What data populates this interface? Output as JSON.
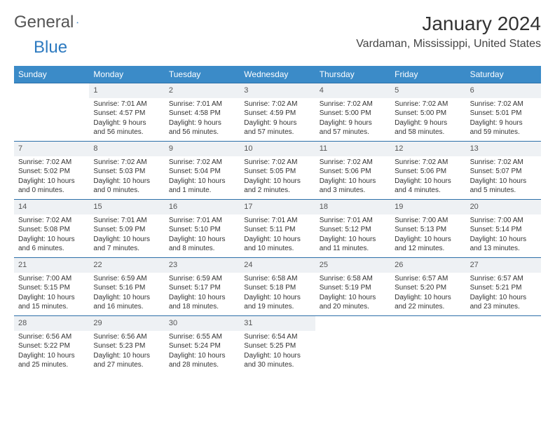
{
  "brand": {
    "part1": "General",
    "part2": "Blue"
  },
  "title": "January 2024",
  "location": "Vardaman, Mississippi, United States",
  "colors": {
    "header_bg": "#3b8bc8",
    "header_text": "#ffffff",
    "rule": "#2d6fa8",
    "daynum_bg": "#eef1f4",
    "brand_blue": "#2d7ac0"
  },
  "dayNames": [
    "Sunday",
    "Monday",
    "Tuesday",
    "Wednesday",
    "Thursday",
    "Friday",
    "Saturday"
  ],
  "weeks": [
    [
      {
        "empty": true
      },
      {
        "day": "1",
        "sunrise": "Sunrise: 7:01 AM",
        "sunset": "Sunset: 4:57 PM",
        "daylight1": "Daylight: 9 hours",
        "daylight2": "and 56 minutes."
      },
      {
        "day": "2",
        "sunrise": "Sunrise: 7:01 AM",
        "sunset": "Sunset: 4:58 PM",
        "daylight1": "Daylight: 9 hours",
        "daylight2": "and 56 minutes."
      },
      {
        "day": "3",
        "sunrise": "Sunrise: 7:02 AM",
        "sunset": "Sunset: 4:59 PM",
        "daylight1": "Daylight: 9 hours",
        "daylight2": "and 57 minutes."
      },
      {
        "day": "4",
        "sunrise": "Sunrise: 7:02 AM",
        "sunset": "Sunset: 5:00 PM",
        "daylight1": "Daylight: 9 hours",
        "daylight2": "and 57 minutes."
      },
      {
        "day": "5",
        "sunrise": "Sunrise: 7:02 AM",
        "sunset": "Sunset: 5:00 PM",
        "daylight1": "Daylight: 9 hours",
        "daylight2": "and 58 minutes."
      },
      {
        "day": "6",
        "sunrise": "Sunrise: 7:02 AM",
        "sunset": "Sunset: 5:01 PM",
        "daylight1": "Daylight: 9 hours",
        "daylight2": "and 59 minutes."
      }
    ],
    [
      {
        "day": "7",
        "sunrise": "Sunrise: 7:02 AM",
        "sunset": "Sunset: 5:02 PM",
        "daylight1": "Daylight: 10 hours",
        "daylight2": "and 0 minutes."
      },
      {
        "day": "8",
        "sunrise": "Sunrise: 7:02 AM",
        "sunset": "Sunset: 5:03 PM",
        "daylight1": "Daylight: 10 hours",
        "daylight2": "and 0 minutes."
      },
      {
        "day": "9",
        "sunrise": "Sunrise: 7:02 AM",
        "sunset": "Sunset: 5:04 PM",
        "daylight1": "Daylight: 10 hours",
        "daylight2": "and 1 minute."
      },
      {
        "day": "10",
        "sunrise": "Sunrise: 7:02 AM",
        "sunset": "Sunset: 5:05 PM",
        "daylight1": "Daylight: 10 hours",
        "daylight2": "and 2 minutes."
      },
      {
        "day": "11",
        "sunrise": "Sunrise: 7:02 AM",
        "sunset": "Sunset: 5:06 PM",
        "daylight1": "Daylight: 10 hours",
        "daylight2": "and 3 minutes."
      },
      {
        "day": "12",
        "sunrise": "Sunrise: 7:02 AM",
        "sunset": "Sunset: 5:06 PM",
        "daylight1": "Daylight: 10 hours",
        "daylight2": "and 4 minutes."
      },
      {
        "day": "13",
        "sunrise": "Sunrise: 7:02 AM",
        "sunset": "Sunset: 5:07 PM",
        "daylight1": "Daylight: 10 hours",
        "daylight2": "and 5 minutes."
      }
    ],
    [
      {
        "day": "14",
        "sunrise": "Sunrise: 7:02 AM",
        "sunset": "Sunset: 5:08 PM",
        "daylight1": "Daylight: 10 hours",
        "daylight2": "and 6 minutes."
      },
      {
        "day": "15",
        "sunrise": "Sunrise: 7:01 AM",
        "sunset": "Sunset: 5:09 PM",
        "daylight1": "Daylight: 10 hours",
        "daylight2": "and 7 minutes."
      },
      {
        "day": "16",
        "sunrise": "Sunrise: 7:01 AM",
        "sunset": "Sunset: 5:10 PM",
        "daylight1": "Daylight: 10 hours",
        "daylight2": "and 8 minutes."
      },
      {
        "day": "17",
        "sunrise": "Sunrise: 7:01 AM",
        "sunset": "Sunset: 5:11 PM",
        "daylight1": "Daylight: 10 hours",
        "daylight2": "and 10 minutes."
      },
      {
        "day": "18",
        "sunrise": "Sunrise: 7:01 AM",
        "sunset": "Sunset: 5:12 PM",
        "daylight1": "Daylight: 10 hours",
        "daylight2": "and 11 minutes."
      },
      {
        "day": "19",
        "sunrise": "Sunrise: 7:00 AM",
        "sunset": "Sunset: 5:13 PM",
        "daylight1": "Daylight: 10 hours",
        "daylight2": "and 12 minutes."
      },
      {
        "day": "20",
        "sunrise": "Sunrise: 7:00 AM",
        "sunset": "Sunset: 5:14 PM",
        "daylight1": "Daylight: 10 hours",
        "daylight2": "and 13 minutes."
      }
    ],
    [
      {
        "day": "21",
        "sunrise": "Sunrise: 7:00 AM",
        "sunset": "Sunset: 5:15 PM",
        "daylight1": "Daylight: 10 hours",
        "daylight2": "and 15 minutes."
      },
      {
        "day": "22",
        "sunrise": "Sunrise: 6:59 AM",
        "sunset": "Sunset: 5:16 PM",
        "daylight1": "Daylight: 10 hours",
        "daylight2": "and 16 minutes."
      },
      {
        "day": "23",
        "sunrise": "Sunrise: 6:59 AM",
        "sunset": "Sunset: 5:17 PM",
        "daylight1": "Daylight: 10 hours",
        "daylight2": "and 18 minutes."
      },
      {
        "day": "24",
        "sunrise": "Sunrise: 6:58 AM",
        "sunset": "Sunset: 5:18 PM",
        "daylight1": "Daylight: 10 hours",
        "daylight2": "and 19 minutes."
      },
      {
        "day": "25",
        "sunrise": "Sunrise: 6:58 AM",
        "sunset": "Sunset: 5:19 PM",
        "daylight1": "Daylight: 10 hours",
        "daylight2": "and 20 minutes."
      },
      {
        "day": "26",
        "sunrise": "Sunrise: 6:57 AM",
        "sunset": "Sunset: 5:20 PM",
        "daylight1": "Daylight: 10 hours",
        "daylight2": "and 22 minutes."
      },
      {
        "day": "27",
        "sunrise": "Sunrise: 6:57 AM",
        "sunset": "Sunset: 5:21 PM",
        "daylight1": "Daylight: 10 hours",
        "daylight2": "and 23 minutes."
      }
    ],
    [
      {
        "day": "28",
        "sunrise": "Sunrise: 6:56 AM",
        "sunset": "Sunset: 5:22 PM",
        "daylight1": "Daylight: 10 hours",
        "daylight2": "and 25 minutes."
      },
      {
        "day": "29",
        "sunrise": "Sunrise: 6:56 AM",
        "sunset": "Sunset: 5:23 PM",
        "daylight1": "Daylight: 10 hours",
        "daylight2": "and 27 minutes."
      },
      {
        "day": "30",
        "sunrise": "Sunrise: 6:55 AM",
        "sunset": "Sunset: 5:24 PM",
        "daylight1": "Daylight: 10 hours",
        "daylight2": "and 28 minutes."
      },
      {
        "day": "31",
        "sunrise": "Sunrise: 6:54 AM",
        "sunset": "Sunset: 5:25 PM",
        "daylight1": "Daylight: 10 hours",
        "daylight2": "and 30 minutes."
      },
      {
        "empty": true
      },
      {
        "empty": true
      },
      {
        "empty": true
      }
    ]
  ]
}
